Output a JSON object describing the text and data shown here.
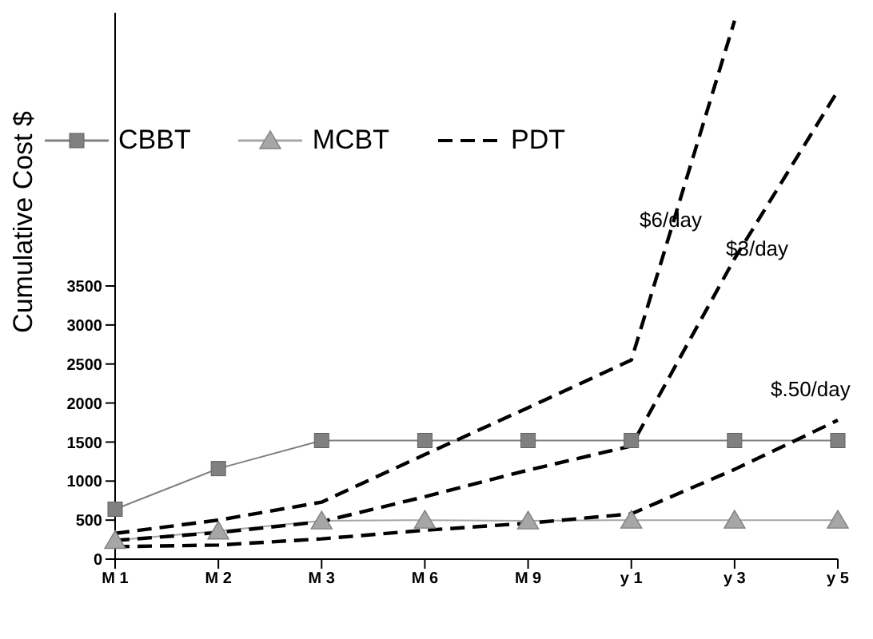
{
  "chart_data": {
    "type": "line",
    "ylabel": "Cumulative Cost $",
    "categories": [
      "M 1",
      "M 2",
      "M 3",
      "M 6",
      "M 9",
      "y 1",
      "y 3",
      "y 5"
    ],
    "series": [
      {
        "name": "CBBT",
        "color": "#808080",
        "marker": "square",
        "line_style": "solid",
        "values": [
          640,
          1160,
          1520,
          1520,
          1520,
          1520,
          1520,
          1520
        ]
      },
      {
        "name": "MCBT",
        "color": "#a6a6a6",
        "marker": "triangle",
        "line_style": "solid",
        "values": [
          240,
          360,
          490,
          500,
          490,
          500,
          500,
          500
        ]
      },
      {
        "name": "PDT",
        "color": "#000000",
        "marker": "none",
        "line_style": "dashed",
        "values": [
          330,
          500,
          730,
          1340,
          1940,
          2550,
          6900,
          null
        ]
      },
      {
        "color": "#000000",
        "marker": "none",
        "line_style": "dashed",
        "values": [
          240,
          340,
          480,
          800,
          1140,
          1450,
          3850,
          6000
        ]
      },
      {
        "color": "#000000",
        "marker": "none",
        "line_style": "dashed",
        "values": [
          160,
          180,
          260,
          370,
          460,
          580,
          1150,
          1780
        ]
      }
    ],
    "ylim": [
      0,
      7000
    ],
    "yticks": [
      0,
      500,
      1000,
      1500,
      2000,
      2500,
      3000,
      3500
    ],
    "grid": false,
    "legend": "top left",
    "annotations": [
      "$6/day",
      "$3/day",
      "$.50/day"
    ]
  }
}
